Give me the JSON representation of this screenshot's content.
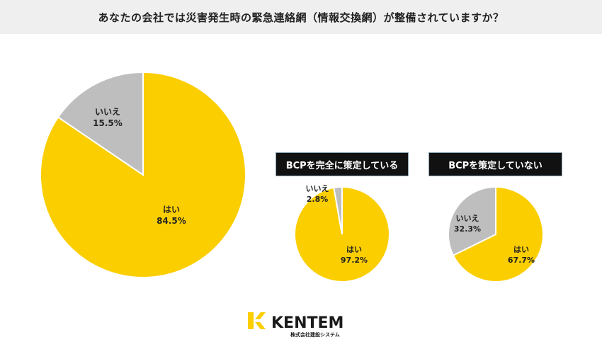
{
  "header": {
    "title": "あなたの会社では災害発生時の緊急連絡網（情報交換網）が整備されていますか？"
  },
  "colors": {
    "yes": "#FBCE00",
    "no": "#BEBEBE",
    "stroke": "#FFFFFF"
  },
  "chart_data": [
    {
      "type": "pie",
      "title": "",
      "slices": [
        {
          "label": "はい",
          "value": 84.5,
          "value_label": "84.5%"
        },
        {
          "label": "いいえ",
          "value": 15.5,
          "value_label": "15.5%"
        }
      ]
    },
    {
      "type": "pie",
      "title": "BCPを完全に策定している",
      "slices": [
        {
          "label": "はい",
          "value": 97.2,
          "value_label": "97.2%"
        },
        {
          "label": "いいえ",
          "value": 2.8,
          "value_label": "2.8%"
        }
      ]
    },
    {
      "type": "pie",
      "title": "BCPを策定していない",
      "slices": [
        {
          "label": "はい",
          "value": 67.7,
          "value_label": "67.7%"
        },
        {
          "label": "いいえ",
          "value": 32.3,
          "value_label": "32.3%"
        }
      ]
    }
  ],
  "logo": {
    "name": "KENTEM",
    "tagline": "株式会社建設システム"
  }
}
